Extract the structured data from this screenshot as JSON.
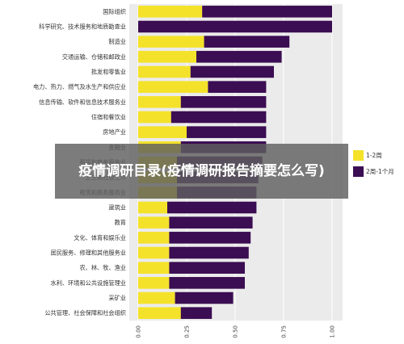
{
  "banner": {
    "title": "疫情调研目录(疫情调研报告摘要怎么写)"
  },
  "colors": {
    "series1": "#f4e22a",
    "series2": "#3b0d52",
    "panel": "#ebebeb"
  },
  "chart_data": {
    "type": "bar",
    "orientation": "horizontal",
    "stacked": true,
    "categories": [
      "国际组织",
      "科学研究、技术服务和地质勘查业",
      "制造业",
      "交通运输、仓储和邮政业",
      "批发和零售业",
      "电力、热力、燃气及水生产和供应业",
      "信息传输、软件和信息技术服务业",
      "住宿和餐饮业",
      "房地产业",
      "金融业",
      "租赁和商务服务业",
      "卫生和社会工作",
      "租赁和商务服务业",
      "建筑业",
      "教育",
      "文化、体育和娱乐业",
      "居民服务、修理和其他服务业",
      "农、林、牧、渔业",
      "水利、环境和公共设施管理业",
      "采矿业",
      "公共管理、社会保障和社会组织"
    ],
    "series": [
      {
        "name": "1-2周",
        "values": [
          0.33,
          0.0,
          0.34,
          0.3,
          0.27,
          0.36,
          0.22,
          0.17,
          0.25,
          0.22,
          0.2,
          0.2,
          0.2,
          0.15,
          0.16,
          0.16,
          0.16,
          0.16,
          0.16,
          0.19,
          0.22
        ]
      },
      {
        "name": "2周-1个月",
        "values": [
          0.67,
          1.0,
          0.44,
          0.44,
          0.43,
          0.3,
          0.44,
          0.49,
          0.41,
          0.44,
          0.44,
          0.42,
          0.41,
          0.46,
          0.43,
          0.42,
          0.41,
          0.39,
          0.39,
          0.3,
          0.16
        ]
      }
    ],
    "xlim": [
      0,
      1
    ],
    "xticks": [
      "0.00",
      "0.25",
      "0.50",
      "0.75",
      "1.00"
    ],
    "tick_values": [
      0,
      0.25,
      0.5,
      0.75,
      1.0
    ],
    "grid": true,
    "legend_position": "right"
  }
}
